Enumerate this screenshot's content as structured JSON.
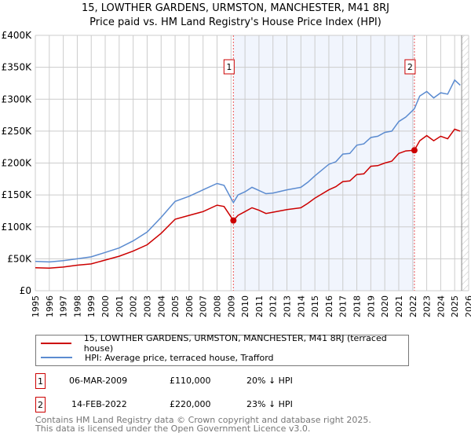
{
  "chart_data": {
    "type": "line",
    "title": "15, LOWTHER GARDENS, URMSTON, MANCHESTER, M41 8RJ",
    "subtitle": "Price paid vs. HM Land Registry's House Price Index (HPI)",
    "xlim": [
      1995,
      2026
    ],
    "ylim": [
      0,
      400000
    ],
    "x_ticks": [
      "1995",
      "1996",
      "1997",
      "1998",
      "1999",
      "2000",
      "2001",
      "2002",
      "2003",
      "2004",
      "2005",
      "2006",
      "2007",
      "2008",
      "2009",
      "2010",
      "2011",
      "2012",
      "2013",
      "2014",
      "2015",
      "2016",
      "2017",
      "2018",
      "2019",
      "2020",
      "2021",
      "2022",
      "2023",
      "2024",
      "2025",
      "2026"
    ],
    "y_ticks": [
      {
        "v": 0,
        "label": "£0"
      },
      {
        "v": 50000,
        "label": "£50K"
      },
      {
        "v": 100000,
        "label": "£100K"
      },
      {
        "v": 150000,
        "label": "£150K"
      },
      {
        "v": 200000,
        "label": "£200K"
      },
      {
        "v": 250000,
        "label": "£250K"
      },
      {
        "v": 300000,
        "label": "£300K"
      },
      {
        "v": 350000,
        "label": "£350K"
      },
      {
        "v": 400000,
        "label": "£400K"
      }
    ],
    "grid": true,
    "series": [
      {
        "name": "15, LOWTHER GARDENS, URMSTON, MANCHESTER, M41 8RJ (terraced house)",
        "color": "#cc0000",
        "x": [
          1995,
          1996,
          1997,
          1998,
          1999,
          2000,
          2001,
          2002,
          2003,
          2004,
          2005,
          2006,
          2007,
          2008,
          2008.5,
          2009.17,
          2009.5,
          2010,
          2010.5,
          2011,
          2011.5,
          2012,
          2013,
          2014,
          2014.5,
          2015,
          2016,
          2016.5,
          2017,
          2017.5,
          2018,
          2018.5,
          2019,
          2019.5,
          2020,
          2020.5,
          2021,
          2021.5,
          2022.12,
          2022.5,
          2023,
          2023.5,
          2024,
          2024.5,
          2025,
          2025.4
        ],
        "y": [
          36000,
          35500,
          37000,
          40000,
          42000,
          48000,
          54000,
          62000,
          72000,
          90000,
          112000,
          118000,
          124000,
          134000,
          132000,
          110000,
          118000,
          124000,
          130000,
          126000,
          121000,
          123000,
          127000,
          130000,
          137000,
          145000,
          158000,
          163000,
          171000,
          172000,
          182000,
          183000,
          195000,
          196000,
          200000,
          203000,
          215000,
          219000,
          220000,
          235000,
          243000,
          235000,
          242000,
          238000,
          253000,
          250000
        ]
      },
      {
        "name": "HPI: Average price, terraced house, Trafford",
        "color": "#5b8bd0",
        "x": [
          1995,
          1996,
          1997,
          1998,
          1999,
          2000,
          2001,
          2002,
          2003,
          2004,
          2005,
          2006,
          2007,
          2008,
          2008.5,
          2009.17,
          2009.5,
          2010,
          2010.5,
          2011,
          2011.5,
          2012,
          2013,
          2014,
          2014.5,
          2015,
          2016,
          2016.5,
          2017,
          2017.5,
          2018,
          2018.5,
          2019,
          2019.5,
          2020,
          2020.5,
          2021,
          2021.5,
          2022.12,
          2022.5,
          2023,
          2023.5,
          2024,
          2024.5,
          2025,
          2025.4
        ],
        "y": [
          46000,
          45000,
          47000,
          50000,
          53000,
          60000,
          67000,
          78000,
          92000,
          115000,
          140000,
          148000,
          158000,
          168000,
          165000,
          138000,
          150000,
          155000,
          162000,
          157000,
          152000,
          153000,
          158000,
          162000,
          170000,
          180000,
          198000,
          202000,
          214000,
          215000,
          228000,
          230000,
          240000,
          242000,
          248000,
          250000,
          265000,
          272000,
          285000,
          305000,
          312000,
          302000,
          310000,
          308000,
          330000,
          322000
        ]
      }
    ],
    "shaded_region": [
      2009.17,
      2022.12
    ],
    "hatched_from": 2025.5,
    "sales": [
      {
        "id": "1",
        "x": 2009.17,
        "y": 110000,
        "date": "06-MAR-2009",
        "price": "£110,000",
        "hpi": "20% ↓ HPI"
      },
      {
        "id": "2",
        "x": 2022.12,
        "y": 220000,
        "date": "14-FEB-2022",
        "price": "£220,000",
        "hpi": "23% ↓ HPI"
      }
    ],
    "legend_placement": "below"
  },
  "footer": {
    "line1": "Contains HM Land Registry data © Crown copyright and database right 2025.",
    "line2": "This data is licensed under the Open Government Licence v3.0."
  }
}
